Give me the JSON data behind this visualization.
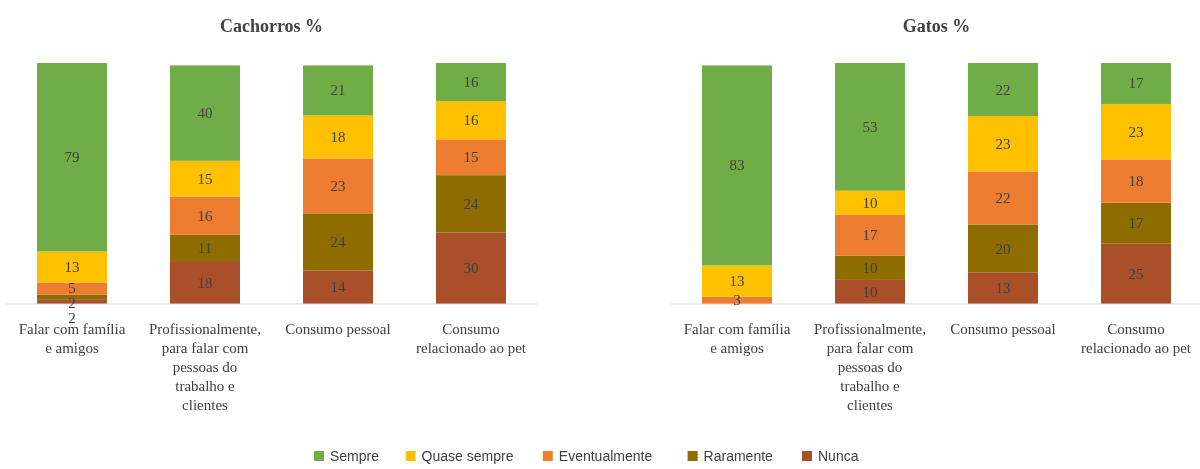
{
  "chart_data": [
    {
      "type": "bar",
      "title": "Cachorros  %",
      "stacked": true,
      "data_labels": true,
      "legend": "bottom",
      "tick_labels": "x",
      "categories": [
        "Falar com família e amigos",
        "Profissionalmente, para falar com pessoas do trabalho e clientes",
        "Consumo pessoal",
        "Consumo relacionado ao pet"
      ],
      "series": [
        {
          "name": "Nunca",
          "color": "#a9502a",
          "values": [
            2,
            18,
            14,
            30
          ]
        },
        {
          "name": "Raramente",
          "color": "#8f6c00",
          "values": [
            2,
            11,
            24,
            24
          ]
        },
        {
          "name": "Eventualmente",
          "color": "#ed7d31",
          "values": [
            5,
            16,
            23,
            15
          ]
        },
        {
          "name": "Quase sempre",
          "color": "#ffc000",
          "values": [
            13,
            15,
            18,
            16
          ]
        },
        {
          "name": "Sempre",
          "color": "#70ad47",
          "values": [
            79,
            40,
            21,
            16
          ]
        }
      ]
    },
    {
      "type": "bar",
      "title": "Gatos %",
      "stacked": true,
      "data_labels": true,
      "tick_labels": "x",
      "categories": [
        "Falar com família e amigos",
        "Profissionalmente, para falar com pessoas do trabalho e clientes",
        "Consumo pessoal",
        "Consumo relacionado ao pet"
      ],
      "series": [
        {
          "color": "#a9502a",
          "values": [
            null,
            10,
            13,
            25
          ]
        },
        {
          "color": "#8f6c00",
          "values": [
            null,
            10,
            20,
            17
          ]
        },
        {
          "color": "#ed7d31",
          "values": [
            3,
            17,
            22,
            18
          ]
        },
        {
          "color": "#ffc000",
          "values": [
            13,
            10,
            23,
            23
          ]
        },
        {
          "color": "#70ad47",
          "values": [
            83,
            53,
            22,
            17
          ]
        }
      ]
    }
  ]
}
